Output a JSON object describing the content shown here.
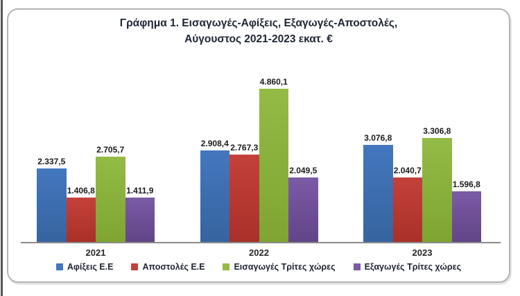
{
  "chart_data": {
    "type": "bar",
    "title_line1": "Γράφημα 1. Εισαγωγές-Αφίξεις, Εξαγωγές-Αποστολές,",
    "title_line2": "Αύγουστος 2021-2023 εκατ. €",
    "categories": [
      "2021",
      "2022",
      "2023"
    ],
    "series": [
      {
        "name": "Αφίξεις Ε.Ε",
        "slug": "arrivals-eu",
        "color": "#4377BE",
        "color_dark": "#36649F",
        "values": [
          2337.5,
          2908.4,
          3076.8
        ],
        "labels": [
          "2.337,5",
          "2.908,4",
          "3.076,8"
        ]
      },
      {
        "name": "Αποστολές Ε.Ε",
        "slug": "dispatches-eu",
        "color": "#C4413A",
        "color_dark": "#A93029",
        "values": [
          1406.8,
          2767.3,
          2040.7
        ],
        "labels": [
          "1.406,8",
          "2.767,3",
          "2.040,7"
        ]
      },
      {
        "name": "Εισαγωγές Τρίτες χώρες",
        "slug": "imports-third-countries",
        "color": "#93BB45",
        "color_dark": "#7FA433",
        "values": [
          2705.7,
          4860.1,
          3306.8
        ],
        "labels": [
          "2.705,7",
          "4.860,1",
          "3.306,8"
        ]
      },
      {
        "name": "Εξαγωγές Τρίτες χώρες",
        "slug": "exports-third-countries",
        "color": "#7A5BA5",
        "color_dark": "#624488",
        "values": [
          1411.9,
          2049.5,
          1596.8
        ],
        "labels": [
          "1.411,9",
          "2.049,5",
          "1.596,8"
        ]
      }
    ],
    "ylabel": "",
    "xlabel": "",
    "ylim": [
      0,
      5000
    ],
    "grid": false,
    "legend_position": "bottom",
    "axis_line_color": "#8a8a8a"
  }
}
